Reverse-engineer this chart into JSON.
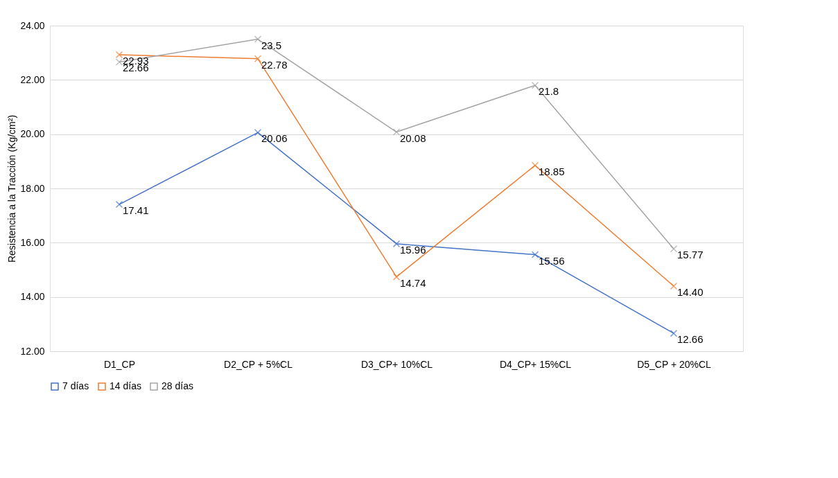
{
  "chart_data": {
    "type": "line",
    "ylabel": "Resistencia a la Tracción (Kg/cm²)",
    "categories": [
      "D1_CP",
      "D2_CP + 5%CL",
      "D3_CP+ 10%CL",
      "D4_CP+ 15%CL",
      "D5_CP + 20%CL"
    ],
    "series": [
      {
        "name": "7 días",
        "color": "#4472c4",
        "values": [
          17.41,
          20.06,
          15.96,
          15.56,
          12.66
        ],
        "value_labels": [
          "17.41",
          "20.06",
          "15.96",
          "15.56",
          "12.66"
        ]
      },
      {
        "name": "14 días",
        "color": "#ed7d31",
        "values": [
          22.93,
          22.78,
          14.74,
          18.85,
          14.4
        ],
        "value_labels": [
          "22.93",
          "22.78",
          "14.74",
          "18.85",
          "14.40"
        ]
      },
      {
        "name": "28 días",
        "color": "#a5a5a5",
        "values": [
          22.66,
          23.5,
          20.08,
          21.8,
          15.77
        ],
        "value_labels": [
          "22.66",
          "23.5",
          "20.08",
          "21.8",
          "15.77"
        ]
      }
    ],
    "ylim": [
      12,
      24
    ],
    "yticks": [
      {
        "value": 12,
        "label": "12.00"
      },
      {
        "value": 14,
        "label": "14.00"
      },
      {
        "value": 16,
        "label": "16.00"
      },
      {
        "value": 18,
        "label": "18.00"
      },
      {
        "value": 20,
        "label": "20.00"
      },
      {
        "value": 22,
        "label": "22.00"
      },
      {
        "value": 24,
        "label": "24.00"
      }
    ],
    "grid": "y",
    "legend": "bottom",
    "marker": "cross",
    "line_style": "solid"
  }
}
